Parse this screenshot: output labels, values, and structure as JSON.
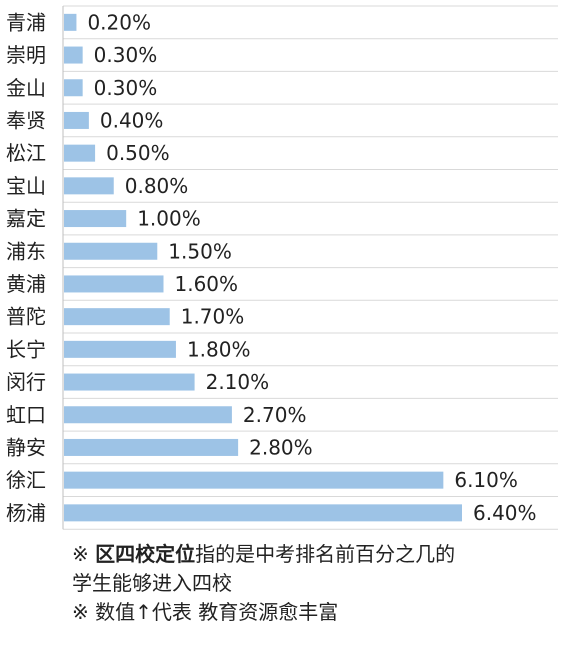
{
  "chart_data": {
    "type": "bar",
    "orientation": "horizontal",
    "categories": [
      "青浦",
      "崇明",
      "金山",
      "奉贤",
      "松江",
      "宝山",
      "嘉定",
      "浦东",
      "黄浦",
      "普陀",
      "长宁",
      "闵行",
      "虹口",
      "静安",
      "徐汇",
      "杨浦"
    ],
    "values": [
      0.2,
      0.3,
      0.3,
      0.4,
      0.5,
      0.8,
      1.0,
      1.5,
      1.6,
      1.7,
      1.8,
      2.1,
      2.7,
      2.8,
      6.1,
      6.4
    ],
    "value_labels": [
      "0.20%",
      "0.30%",
      "0.30%",
      "0.40%",
      "0.50%",
      "0.80%",
      "1.00%",
      "1.50%",
      "1.60%",
      "1.70%",
      "1.80%",
      "2.10%",
      "2.70%",
      "2.80%",
      "6.10%",
      "6.40%"
    ],
    "xlim": [
      0,
      6.8
    ],
    "grid": true,
    "bar_color": "#9dc3e6"
  },
  "notes": {
    "line1_prefix": "※ ",
    "line1_bold": "区四校定位",
    "line1_rest": "指的是中考排名前百分之几的",
    "line2": "学生能够进入四校",
    "line3": "※ 数值↑代表 教育资源愈丰富"
  }
}
